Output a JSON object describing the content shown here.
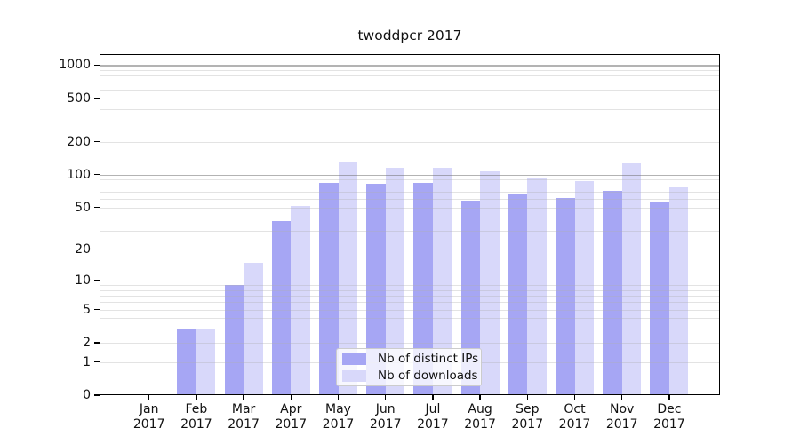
{
  "title": "twoddpcr 2017",
  "colors": {
    "ips_bar": "#a6a6f4",
    "downloads_bar": "#d8d8fa",
    "grid_major": "rgba(110,110,110,0.52)",
    "grid_minor": "rgba(175,175,175,0.35)",
    "axis": "#000000",
    "legend_border": "#cccccc"
  },
  "legend": {
    "items": [
      {
        "label": "Nb of distinct IPs",
        "series": "ips"
      },
      {
        "label": "Nb of downloads",
        "series": "downloads"
      }
    ]
  },
  "y_axis": {
    "tick_values": [
      0,
      1,
      2,
      5,
      10,
      20,
      50,
      100,
      200,
      500,
      1000
    ],
    "minor_grid_values": [
      1,
      2,
      3,
      4,
      5,
      6,
      7,
      8,
      9,
      20,
      30,
      40,
      50,
      60,
      70,
      80,
      90,
      200,
      300,
      400,
      500,
      600,
      700,
      800,
      900
    ],
    "major_grid_values": [
      10,
      100,
      1000
    ]
  },
  "x_axis": {
    "months": [
      {
        "abbr": "Jan",
        "year": "2017"
      },
      {
        "abbr": "Feb",
        "year": "2017"
      },
      {
        "abbr": "Mar",
        "year": "2017"
      },
      {
        "abbr": "Apr",
        "year": "2017"
      },
      {
        "abbr": "May",
        "year": "2017"
      },
      {
        "abbr": "Jun",
        "year": "2017"
      },
      {
        "abbr": "Jul",
        "year": "2017"
      },
      {
        "abbr": "Aug",
        "year": "2017"
      },
      {
        "abbr": "Sep",
        "year": "2017"
      },
      {
        "abbr": "Oct",
        "year": "2017"
      },
      {
        "abbr": "Nov",
        "year": "2017"
      },
      {
        "abbr": "Dec",
        "year": "2017"
      }
    ]
  },
  "chart_data": {
    "type": "bar",
    "title": "twoddpcr 2017",
    "categories": [
      "Jan 2017",
      "Feb 2017",
      "Mar 2017",
      "Apr 2017",
      "May 2017",
      "Jun 2017",
      "Jul 2017",
      "Aug 2017",
      "Sep 2017",
      "Oct 2017",
      "Nov 2017",
      "Dec 2017"
    ],
    "series": [
      {
        "name": "Nb of distinct IPs",
        "color": "#a6a6f4",
        "values": [
          0,
          3,
          9,
          37,
          84,
          82,
          84,
          58,
          67,
          61,
          71,
          55
        ]
      },
      {
        "name": "Nb of downloads",
        "color": "#d8d8fa",
        "values": [
          0,
          3,
          15,
          51,
          132,
          116,
          115,
          107,
          92,
          87,
          127,
          76
        ]
      }
    ],
    "xlabel": "",
    "ylabel": "",
    "y_scale": "log10(1+x)",
    "y_ticks": [
      0,
      1,
      2,
      5,
      10,
      20,
      50,
      100,
      200,
      500,
      1000
    ],
    "ylim": [
      0,
      1250
    ],
    "grid": true,
    "legend_position": "lower center"
  }
}
